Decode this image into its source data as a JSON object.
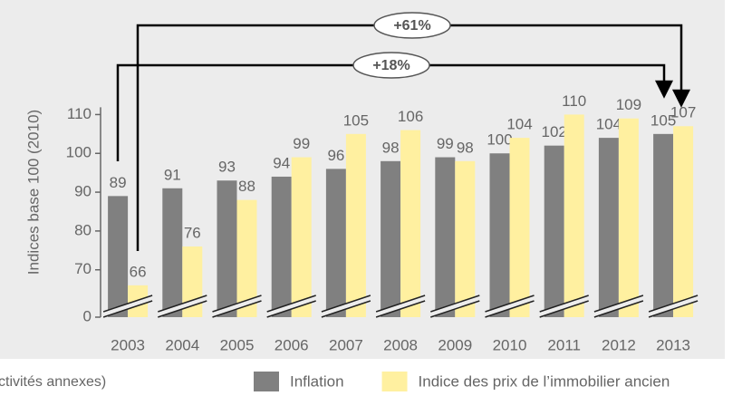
{
  "chart_data": {
    "type": "bar",
    "y_axis_label": "Indices base 100 (2010)",
    "categories": [
      "2003",
      "2004",
      "2005",
      "2006",
      "2007",
      "2008",
      "2009",
      "2010",
      "2011",
      "2012",
      "2013"
    ],
    "series": [
      {
        "name": "Inflation",
        "color": "#808080",
        "values": [
          89,
          91,
          93,
          94,
          96,
          98,
          99,
          100,
          102,
          104,
          105
        ]
      },
      {
        "name": "Indice des prix de l’immobilier ancien",
        "color": "#fff0a0",
        "values": [
          66,
          76,
          88,
          99,
          105,
          106,
          98,
          104,
          110,
          109,
          107
        ]
      }
    ],
    "ylim": [
      0,
      115
    ],
    "yticks": [
      0,
      70,
      80,
      90,
      100,
      110
    ],
    "ybreak": 62,
    "annotations": [
      "+61%",
      "+18%"
    ],
    "footnote": "ctivités annexes)"
  }
}
